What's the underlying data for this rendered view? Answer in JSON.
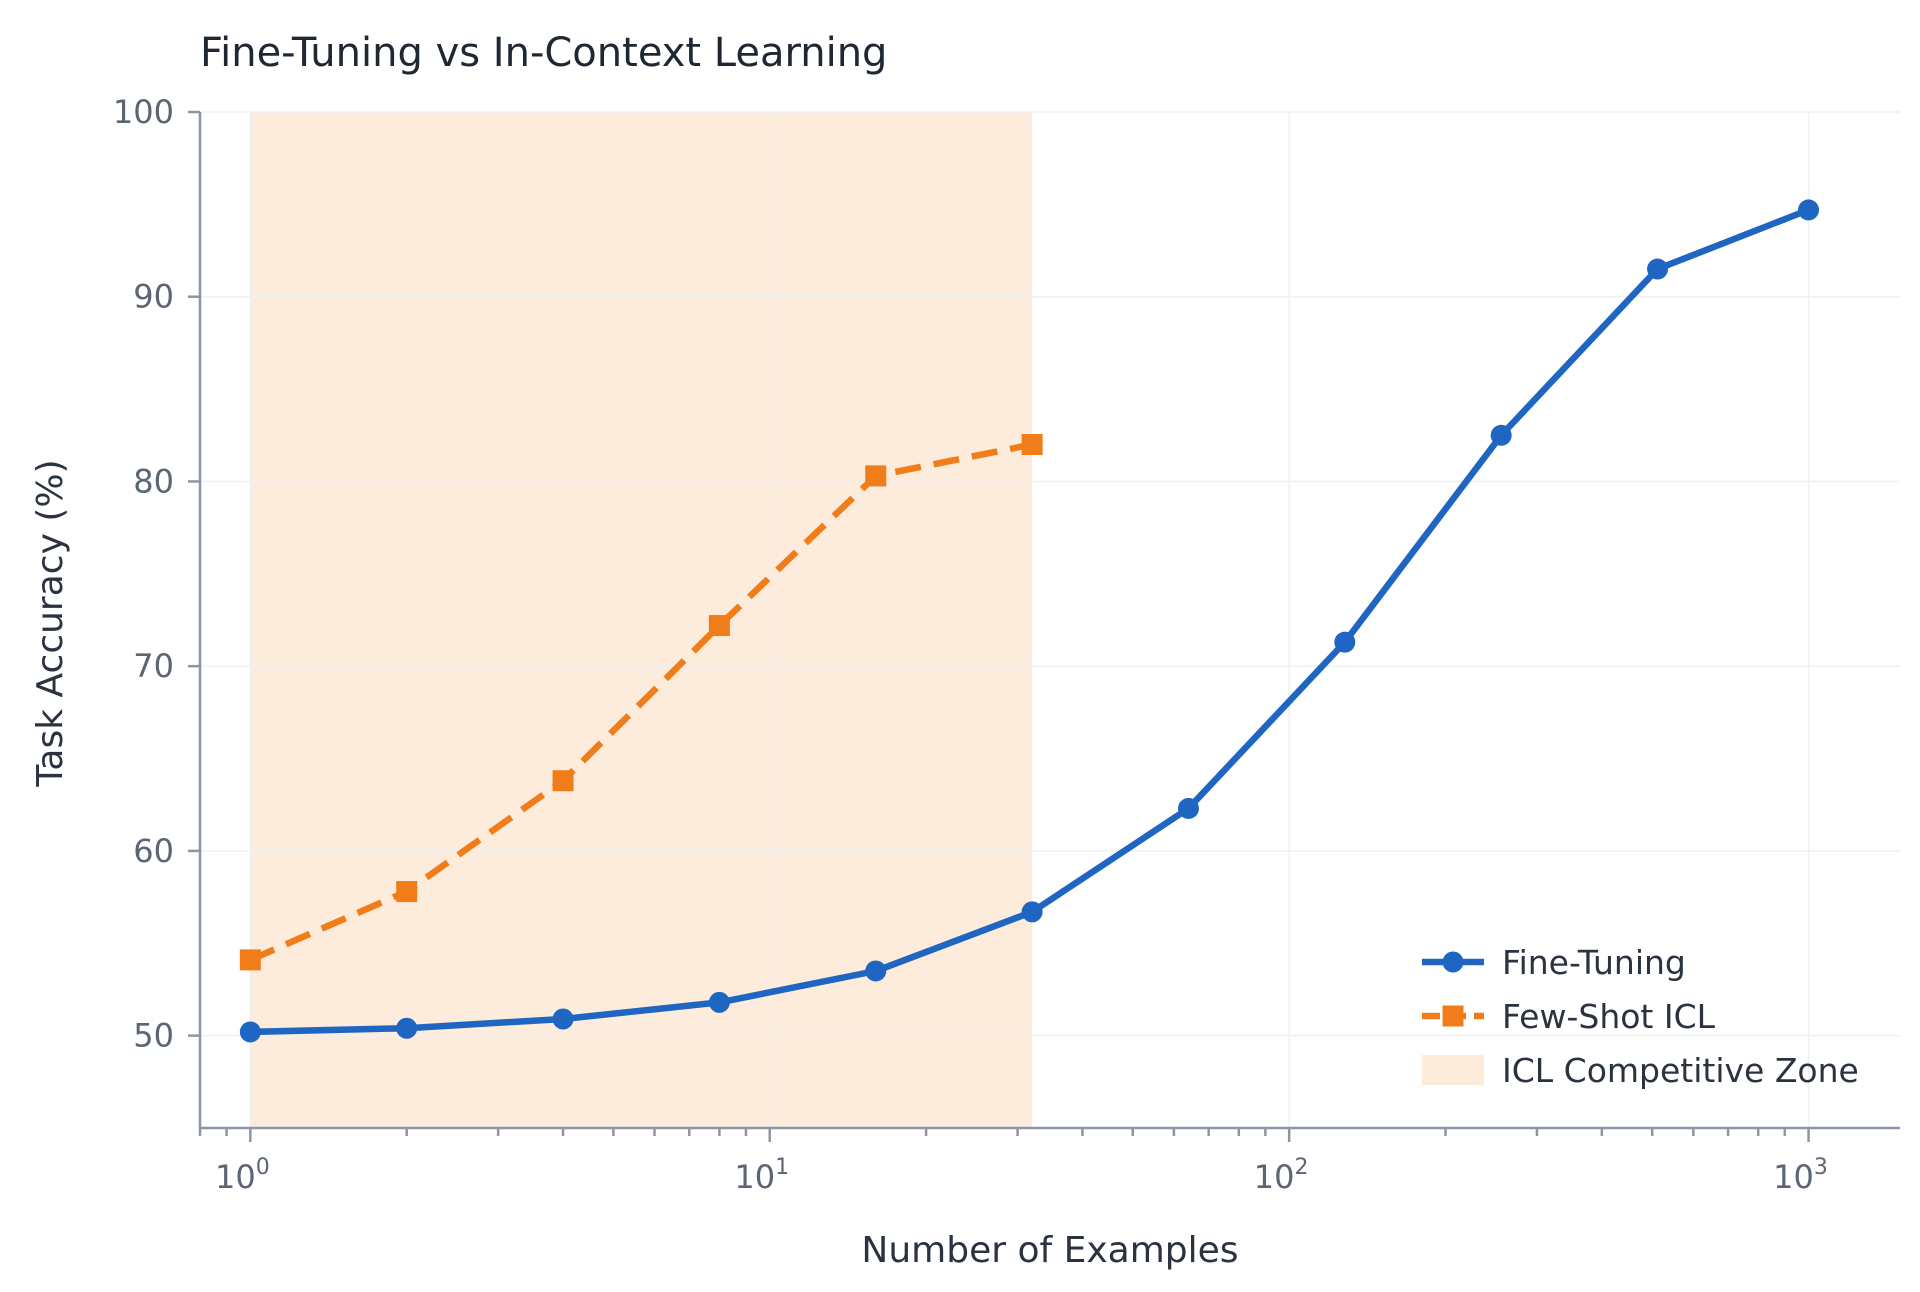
{
  "chart_data": {
    "type": "line",
    "title": "Fine-Tuning vs In-Context Learning",
    "xlabel": "Number of Examples",
    "ylabel": "Task Accuracy (%)",
    "x_scale": "log",
    "xlim": [
      0.8,
      1500
    ],
    "ylim": [
      45,
      100
    ],
    "x_ticks": [
      {
        "value": 1,
        "base": "10",
        "exp": "0"
      },
      {
        "value": 10,
        "base": "10",
        "exp": "1"
      },
      {
        "value": 100,
        "base": "10",
        "exp": "2"
      },
      {
        "value": 1000,
        "base": "10",
        "exp": "3"
      }
    ],
    "y_ticks": [
      50,
      60,
      70,
      80,
      90,
      100
    ],
    "grid": true,
    "legend_position": "bottom-right",
    "shaded_region": {
      "name": "ICL Competitive Zone",
      "x_range": [
        1,
        32
      ],
      "color": "#fdebdc"
    },
    "series": [
      {
        "name": "Fine-Tuning",
        "color": "#1f65c2",
        "line_style": "solid",
        "marker": "circle",
        "x": [
          1,
          2,
          4,
          8,
          16,
          32,
          64,
          128,
          256,
          512,
          1000
        ],
        "y": [
          50.2,
          50.4,
          50.9,
          51.8,
          53.5,
          56.7,
          62.3,
          71.3,
          82.5,
          91.5,
          94.7
        ]
      },
      {
        "name": "Few-Shot ICL",
        "color": "#f07d1a",
        "line_style": "dashed",
        "marker": "square",
        "x": [
          1,
          2,
          4,
          8,
          16,
          32
        ],
        "y": [
          54.1,
          57.8,
          63.8,
          72.2,
          80.3,
          82.0
        ]
      }
    ]
  }
}
